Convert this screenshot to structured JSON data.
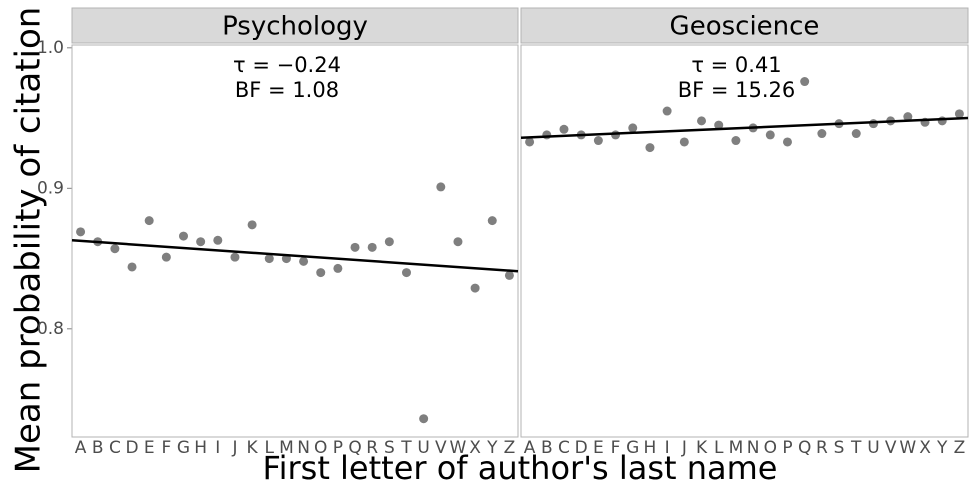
{
  "chart_data": {
    "type": "facet",
    "ylabel": "Mean probability of citation",
    "xlabel": "First letter of author's last name",
    "ylim": [
      0.723,
      1.002
    ],
    "yticks": [
      {
        "value": 0.8,
        "label": "0.8"
      },
      {
        "value": 0.9,
        "label": "0.9"
      },
      {
        "value": 1,
        "label": "1.0"
      }
    ],
    "panels": [
      {
        "type": "scatter",
        "title": "Psychology",
        "annotations": [
          "τ = −0.24",
          "BF = 1.08"
        ],
        "color": "#7f7f7f",
        "line_color": "#000000",
        "categories": [
          "A",
          "B",
          "C",
          "D",
          "E",
          "F",
          "G",
          "H",
          "I",
          "J",
          "K",
          "L",
          "M",
          "N",
          "O",
          "P",
          "Q",
          "R",
          "S",
          "T",
          "U",
          "V",
          "W",
          "X",
          "Y",
          "Z"
        ],
        "values": [
          0.869,
          0.862,
          0.857,
          0.844,
          0.877,
          0.851,
          0.866,
          0.862,
          0.863,
          0.851,
          0.874,
          0.85,
          0.85,
          0.848,
          0.84,
          0.843,
          0.858,
          0.858,
          0.862,
          0.84,
          0.736,
          0.901,
          0.862,
          0.829,
          0.877,
          0.838
        ],
        "trend": [
          0.863,
          0.841
        ]
      },
      {
        "type": "scatter",
        "title": "Geoscience",
        "annotations": [
          "τ = 0.41",
          "BF = 15.26"
        ],
        "color": "#7f7f7f",
        "line_color": "#000000",
        "categories": [
          "A",
          "B",
          "C",
          "D",
          "E",
          "F",
          "G",
          "H",
          "I",
          "J",
          "K",
          "L",
          "M",
          "N",
          "O",
          "P",
          "Q",
          "R",
          "S",
          "T",
          "U",
          "V",
          "W",
          "X",
          "Y",
          "Z"
        ],
        "values": [
          0.933,
          0.938,
          0.942,
          0.938,
          0.934,
          0.938,
          0.943,
          0.929,
          0.955,
          0.933,
          0.948,
          0.945,
          0.934,
          0.943,
          0.938,
          0.933,
          0.976,
          0.939,
          0.946,
          0.939,
          0.946,
          0.948,
          0.951,
          0.947,
          0.948,
          0.953
        ],
        "trend": [
          0.936,
          0.95
        ]
      }
    ]
  }
}
